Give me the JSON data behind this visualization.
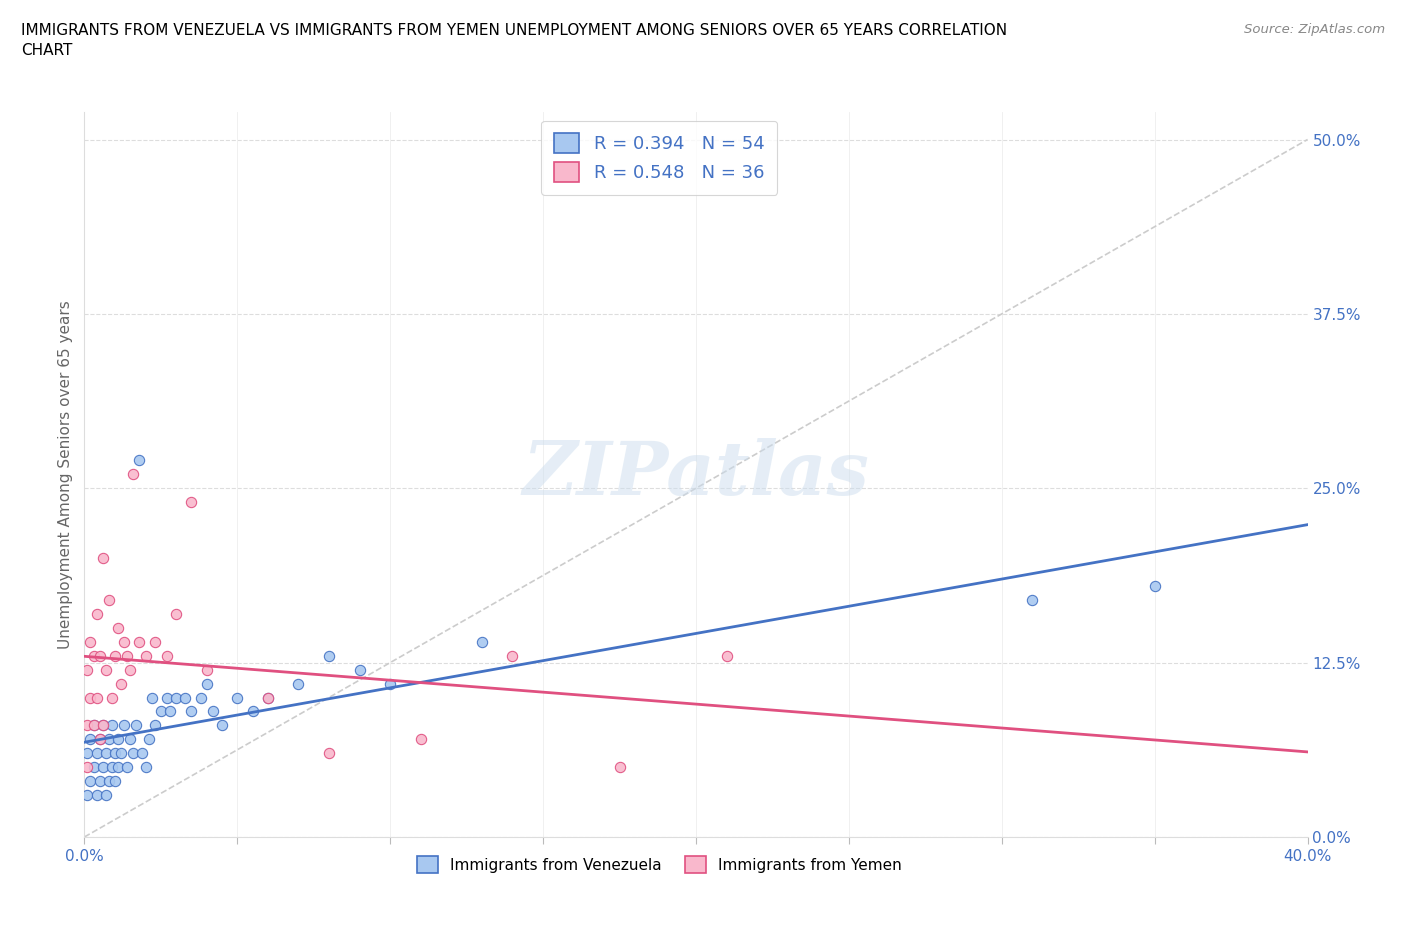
{
  "title": "IMMIGRANTS FROM VENEZUELA VS IMMIGRANTS FROM YEMEN UNEMPLOYMENT AMONG SENIORS OVER 65 YEARS CORRELATION\nCHART",
  "source": "Source: ZipAtlas.com",
  "ylabel": "Unemployment Among Seniors over 65 years",
  "xlim": [
    0.0,
    0.4
  ],
  "ylim": [
    0.0,
    0.52
  ],
  "xticks": [
    0.0,
    0.05,
    0.1,
    0.15,
    0.2,
    0.25,
    0.3,
    0.35,
    0.4
  ],
  "yticks_right": [
    0.0,
    0.125,
    0.25,
    0.375,
    0.5
  ],
  "ytick_labels_right": [
    "0.0%",
    "12.5%",
    "25.0%",
    "37.5%",
    "50.0%"
  ],
  "watermark": "ZIPatlas",
  "legend_r1": "R = 0.394   N = 54",
  "legend_r2": "R = 0.548   N = 36",
  "color_venezuela": "#A8C8F0",
  "color_yemen": "#F9B8CC",
  "line_color_venezuela": "#4472C4",
  "line_color_yemen": "#E05080",
  "diag_color": "#CCCCCC",
  "venezuela_x": [
    0.001,
    0.001,
    0.002,
    0.002,
    0.003,
    0.003,
    0.004,
    0.004,
    0.005,
    0.005,
    0.006,
    0.006,
    0.007,
    0.007,
    0.008,
    0.008,
    0.009,
    0.009,
    0.01,
    0.01,
    0.011,
    0.011,
    0.012,
    0.013,
    0.014,
    0.015,
    0.016,
    0.017,
    0.018,
    0.019,
    0.02,
    0.021,
    0.022,
    0.023,
    0.025,
    0.027,
    0.028,
    0.03,
    0.033,
    0.035,
    0.038,
    0.04,
    0.042,
    0.045,
    0.05,
    0.055,
    0.06,
    0.07,
    0.08,
    0.09,
    0.1,
    0.13,
    0.31,
    0.35
  ],
  "venezuela_y": [
    0.03,
    0.06,
    0.04,
    0.07,
    0.05,
    0.08,
    0.03,
    0.06,
    0.04,
    0.07,
    0.05,
    0.08,
    0.03,
    0.06,
    0.04,
    0.07,
    0.05,
    0.08,
    0.04,
    0.06,
    0.05,
    0.07,
    0.06,
    0.08,
    0.05,
    0.07,
    0.06,
    0.08,
    0.27,
    0.06,
    0.05,
    0.07,
    0.1,
    0.08,
    0.09,
    0.1,
    0.09,
    0.1,
    0.1,
    0.09,
    0.1,
    0.11,
    0.09,
    0.08,
    0.1,
    0.09,
    0.1,
    0.11,
    0.13,
    0.12,
    0.11,
    0.14,
    0.17,
    0.18
  ],
  "yemen_x": [
    0.001,
    0.001,
    0.001,
    0.002,
    0.002,
    0.003,
    0.003,
    0.004,
    0.004,
    0.005,
    0.005,
    0.006,
    0.006,
    0.007,
    0.008,
    0.009,
    0.01,
    0.011,
    0.012,
    0.013,
    0.014,
    0.015,
    0.016,
    0.018,
    0.02,
    0.023,
    0.027,
    0.03,
    0.035,
    0.04,
    0.06,
    0.08,
    0.11,
    0.14,
    0.175,
    0.21
  ],
  "yemen_y": [
    0.05,
    0.08,
    0.12,
    0.1,
    0.14,
    0.08,
    0.13,
    0.1,
    0.16,
    0.07,
    0.13,
    0.08,
    0.2,
    0.12,
    0.17,
    0.1,
    0.13,
    0.15,
    0.11,
    0.14,
    0.13,
    0.12,
    0.26,
    0.14,
    0.13,
    0.14,
    0.13,
    0.16,
    0.24,
    0.12,
    0.1,
    0.06,
    0.07,
    0.13,
    0.05,
    0.13
  ]
}
